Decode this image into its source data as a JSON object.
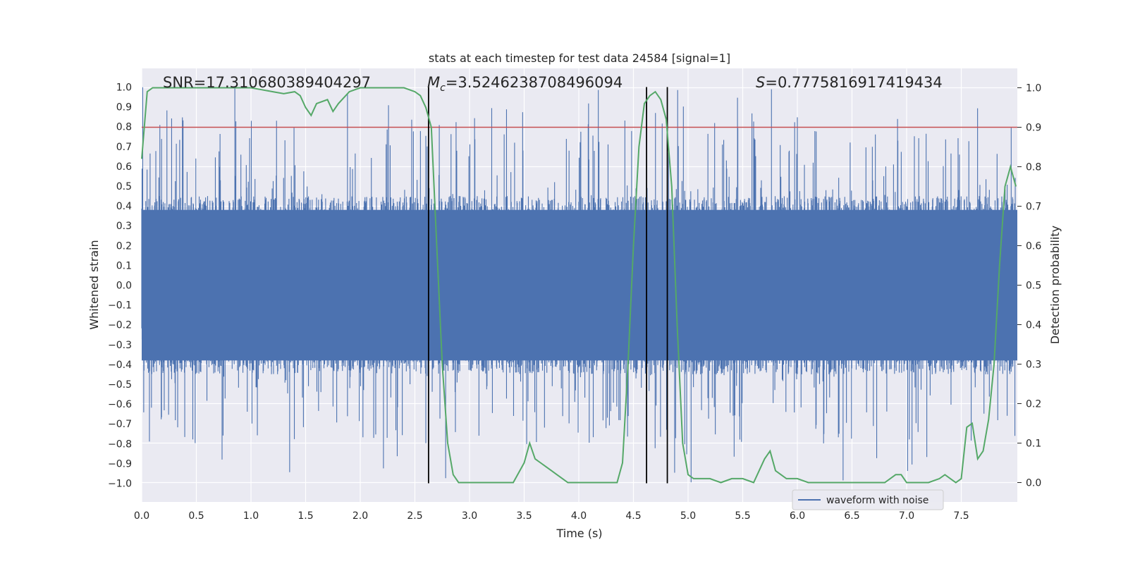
{
  "chart_data": {
    "type": "line",
    "title": "stats at each timestep for test data 24584 [signal=1]",
    "xlabel": "Time (s)",
    "ylabel_left": "Whitened strain",
    "ylabel_right": "Detection probability",
    "xlim": [
      0.0,
      8.0
    ],
    "ylim_left": [
      -1.1,
      1.1
    ],
    "ylim_right": [
      -0.05,
      1.05
    ],
    "x_ticks": [
      "0.0",
      "0.5",
      "1.0",
      "1.5",
      "2.0",
      "2.5",
      "3.0",
      "3.5",
      "4.0",
      "4.5",
      "5.0",
      "5.5",
      "6.0",
      "6.5",
      "7.0",
      "7.5"
    ],
    "y_left_ticks": [
      "1.0",
      "0.9",
      "0.8",
      "0.7",
      "0.6",
      "0.5",
      "0.4",
      "0.3",
      "0.2",
      "0.1",
      "0.0",
      "-0.1",
      "-0.2",
      "-0.3",
      "-0.4",
      "-0.5",
      "-0.6",
      "-0.7",
      "-0.8",
      "-0.9",
      "-1.0"
    ],
    "y_right_ticks": [
      "1.0",
      "0.9",
      "0.8",
      "0.7",
      "0.6",
      "0.5",
      "0.4",
      "0.3",
      "0.2",
      "0.1",
      "0.0"
    ],
    "annotations": {
      "snr": "SNR=17.310680389404297",
      "mc_symbol": "M",
      "mc_subscript": "c",
      "mc_value": "=3.5246238708496094",
      "s_symbol": "S",
      "s_value": "=0.7775816917419434"
    },
    "threshold": {
      "value_right_axis": 0.9,
      "color": "#c44e52"
    },
    "vertical_lines": [
      2.625,
      4.62,
      4.81
    ],
    "series": [
      {
        "name": "waveform with noise",
        "color": "#4c72b0",
        "axis": "left",
        "noise_amplitude": 0.45,
        "spike_extent": 1.0
      },
      {
        "name": "detection probability",
        "color": "#55a868",
        "axis": "right",
        "x": [
          0.0,
          0.05,
          0.1,
          0.2,
          0.4,
          0.6,
          0.8,
          1.0,
          1.1,
          1.2,
          1.3,
          1.4,
          1.45,
          1.5,
          1.55,
          1.6,
          1.7,
          1.75,
          1.8,
          1.9,
          2.0,
          2.2,
          2.4,
          2.5,
          2.55,
          2.6,
          2.65,
          2.7,
          2.75,
          2.8,
          2.85,
          2.9,
          3.0,
          3.1,
          3.2,
          3.3,
          3.4,
          3.5,
          3.55,
          3.6,
          3.65,
          3.7,
          3.75,
          3.8,
          3.85,
          3.9,
          4.0,
          4.2,
          4.35,
          4.4,
          4.45,
          4.5,
          4.55,
          4.6,
          4.65,
          4.7,
          4.75,
          4.8,
          4.85,
          4.9,
          4.95,
          5.0,
          5.05,
          5.1,
          5.2,
          5.3,
          5.4,
          5.5,
          5.6,
          5.7,
          5.75,
          5.8,
          5.85,
          5.9,
          6.0,
          6.1,
          6.2,
          6.3,
          6.4,
          6.5,
          6.6,
          6.7,
          6.8,
          6.9,
          6.95,
          7.0,
          7.1,
          7.2,
          7.3,
          7.35,
          7.4,
          7.45,
          7.5,
          7.55,
          7.6,
          7.65,
          7.7,
          7.75,
          7.8,
          7.85,
          7.9,
          7.95,
          8.0
        ],
        "y": [
          0.82,
          0.99,
          1.0,
          1.0,
          1.0,
          1.0,
          1.0,
          1.0,
          0.995,
          0.99,
          0.985,
          0.99,
          0.98,
          0.95,
          0.93,
          0.96,
          0.97,
          0.94,
          0.96,
          0.99,
          1.0,
          1.0,
          1.0,
          0.99,
          0.98,
          0.95,
          0.9,
          0.6,
          0.3,
          0.1,
          0.02,
          0.0,
          0.0,
          0.0,
          0.0,
          0.0,
          0.0,
          0.05,
          0.1,
          0.06,
          0.05,
          0.04,
          0.03,
          0.02,
          0.01,
          0.0,
          0.0,
          0.0,
          0.0,
          0.05,
          0.3,
          0.6,
          0.85,
          0.96,
          0.98,
          0.99,
          0.97,
          0.92,
          0.75,
          0.4,
          0.1,
          0.02,
          0.01,
          0.01,
          0.01,
          0.0,
          0.01,
          0.01,
          0.0,
          0.06,
          0.08,
          0.03,
          0.02,
          0.01,
          0.01,
          0.0,
          0.0,
          0.0,
          0.0,
          0.0,
          0.0,
          0.0,
          0.0,
          0.02,
          0.02,
          0.0,
          0.0,
          0.0,
          0.01,
          0.02,
          0.01,
          0.0,
          0.01,
          0.14,
          0.15,
          0.06,
          0.08,
          0.16,
          0.3,
          0.55,
          0.75,
          0.8,
          0.75
        ]
      }
    ],
    "legend": {
      "entries": [
        "waveform with noise"
      ],
      "position": "bottom-right"
    },
    "grid": true
  }
}
